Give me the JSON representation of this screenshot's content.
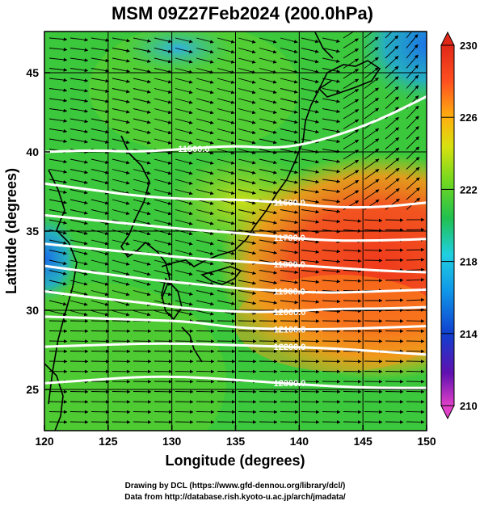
{
  "title": "MSM 09Z27Feb2024 (200.0hPa)",
  "xlabel": "Longitude (degrees)",
  "ylabel": "Latitude  (degrees)",
  "credits": [
    "Drawing by DCL (https://www.gfd-dennou.org/library/dcl/)",
    "Data from http://database.rish.kyoto-u.ac.jp/arch/jmadata/"
  ],
  "map": {
    "xlim": [
      120,
      150
    ],
    "ylim": [
      22.4,
      47.6
    ],
    "x_ticks": [
      "120",
      "125",
      "130",
      "135",
      "140",
      "145",
      "150"
    ],
    "y_ticks": [
      "25",
      "30",
      "35",
      "40",
      "45"
    ],
    "grid_lon": [
      125,
      130,
      135,
      140,
      145
    ],
    "grid_lat": [
      25,
      30,
      35,
      40,
      45
    ]
  },
  "colorbar": {
    "min": 210,
    "max": 230,
    "ticks": [
      "210",
      "214",
      "218",
      "222",
      "226",
      "230"
    ],
    "palette": [
      "#e040c8",
      "#4010c0",
      "#1050e0",
      "#20c8e8",
      "#20c050",
      "#60d820",
      "#c8e010",
      "#ffc010",
      "#ff6020",
      "#e02818"
    ]
  },
  "contours": [
    {
      "label": "11500.0",
      "lat": [
        40.0,
        40.1,
        40.0,
        40.2,
        40.4,
        40.2,
        40.9,
        42.0,
        43.5
      ]
    },
    {
      "label": "11600.0",
      "lat": [
        38.0,
        37.6,
        37.2,
        37.0,
        37.0,
        36.8,
        36.5,
        36.5,
        36.8
      ]
    },
    {
      "label": "11700.0",
      "lat": [
        36.0,
        35.7,
        35.4,
        35.1,
        34.9,
        34.6,
        34.4,
        34.4,
        34.5
      ]
    },
    {
      "label": "11800.0",
      "lat": [
        34.2,
        33.9,
        33.6,
        33.3,
        33.1,
        32.9,
        32.7,
        32.5,
        32.4
      ]
    },
    {
      "label": "11900.0",
      "lat": [
        32.8,
        32.4,
        32.0,
        31.7,
        31.4,
        31.2,
        31.1,
        31.2,
        31.3
      ]
    },
    {
      "label": "12000.0",
      "lat": [
        31.2,
        30.8,
        30.5,
        30.1,
        29.9,
        29.9,
        30.1,
        30.1,
        30.2
      ]
    },
    {
      "label": "12100.0",
      "lat": [
        29.6,
        29.5,
        29.4,
        29.3,
        28.9,
        28.8,
        28.8,
        28.9,
        29.0
      ]
    },
    {
      "label": "12200.0",
      "lat": [
        27.7,
        27.8,
        27.9,
        27.9,
        27.8,
        27.7,
        27.6,
        27.4,
        27.2
      ]
    },
    {
      "label": "12300.0",
      "lat": [
        25.4,
        25.6,
        25.8,
        25.8,
        25.6,
        25.4,
        25.2,
        25.1,
        25.1
      ]
    }
  ]
}
